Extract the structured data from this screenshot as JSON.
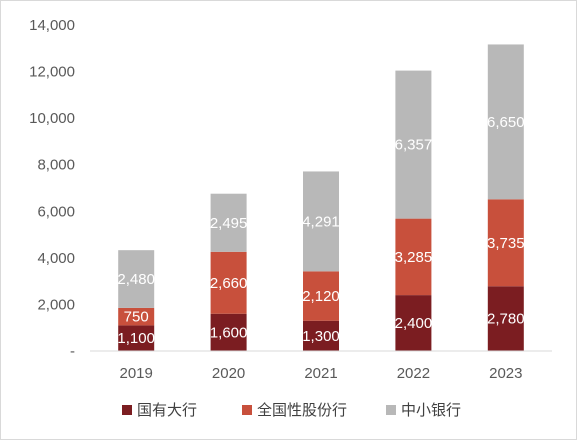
{
  "chart_data": {
    "type": "bar",
    "stacked": true,
    "categories": [
      "2019",
      "2020",
      "2021",
      "2022",
      "2023"
    ],
    "series": [
      {
        "name": "国有大行",
        "color": "#7b1d21",
        "values": [
          1100,
          1600,
          1300,
          2400,
          2780
        ],
        "labels": [
          "1,100",
          "1,600",
          "1,300",
          "2,400",
          "2,780"
        ]
      },
      {
        "name": "全国性股份行",
        "color": "#c8503c",
        "values": [
          750,
          2660,
          2120,
          3285,
          3735
        ],
        "labels": [
          "750",
          "2,660",
          "2,120",
          "3,285",
          "3,735"
        ]
      },
      {
        "name": "中小银行",
        "color": "#b8b8b8",
        "values": [
          2480,
          2495,
          4291,
          6357,
          6650
        ],
        "labels": [
          "2,480",
          "2,495",
          "4,291",
          "6,357",
          "6,650"
        ]
      }
    ],
    "y_ticks": [
      "-",
      "2,000",
      "4,000",
      "6,000",
      "8,000",
      "10,000",
      "12,000",
      "14,000"
    ],
    "ylim": [
      0,
      14000
    ],
    "title": "",
    "xlabel": "",
    "ylabel": "",
    "grid": false,
    "legend_position": "bottom"
  }
}
